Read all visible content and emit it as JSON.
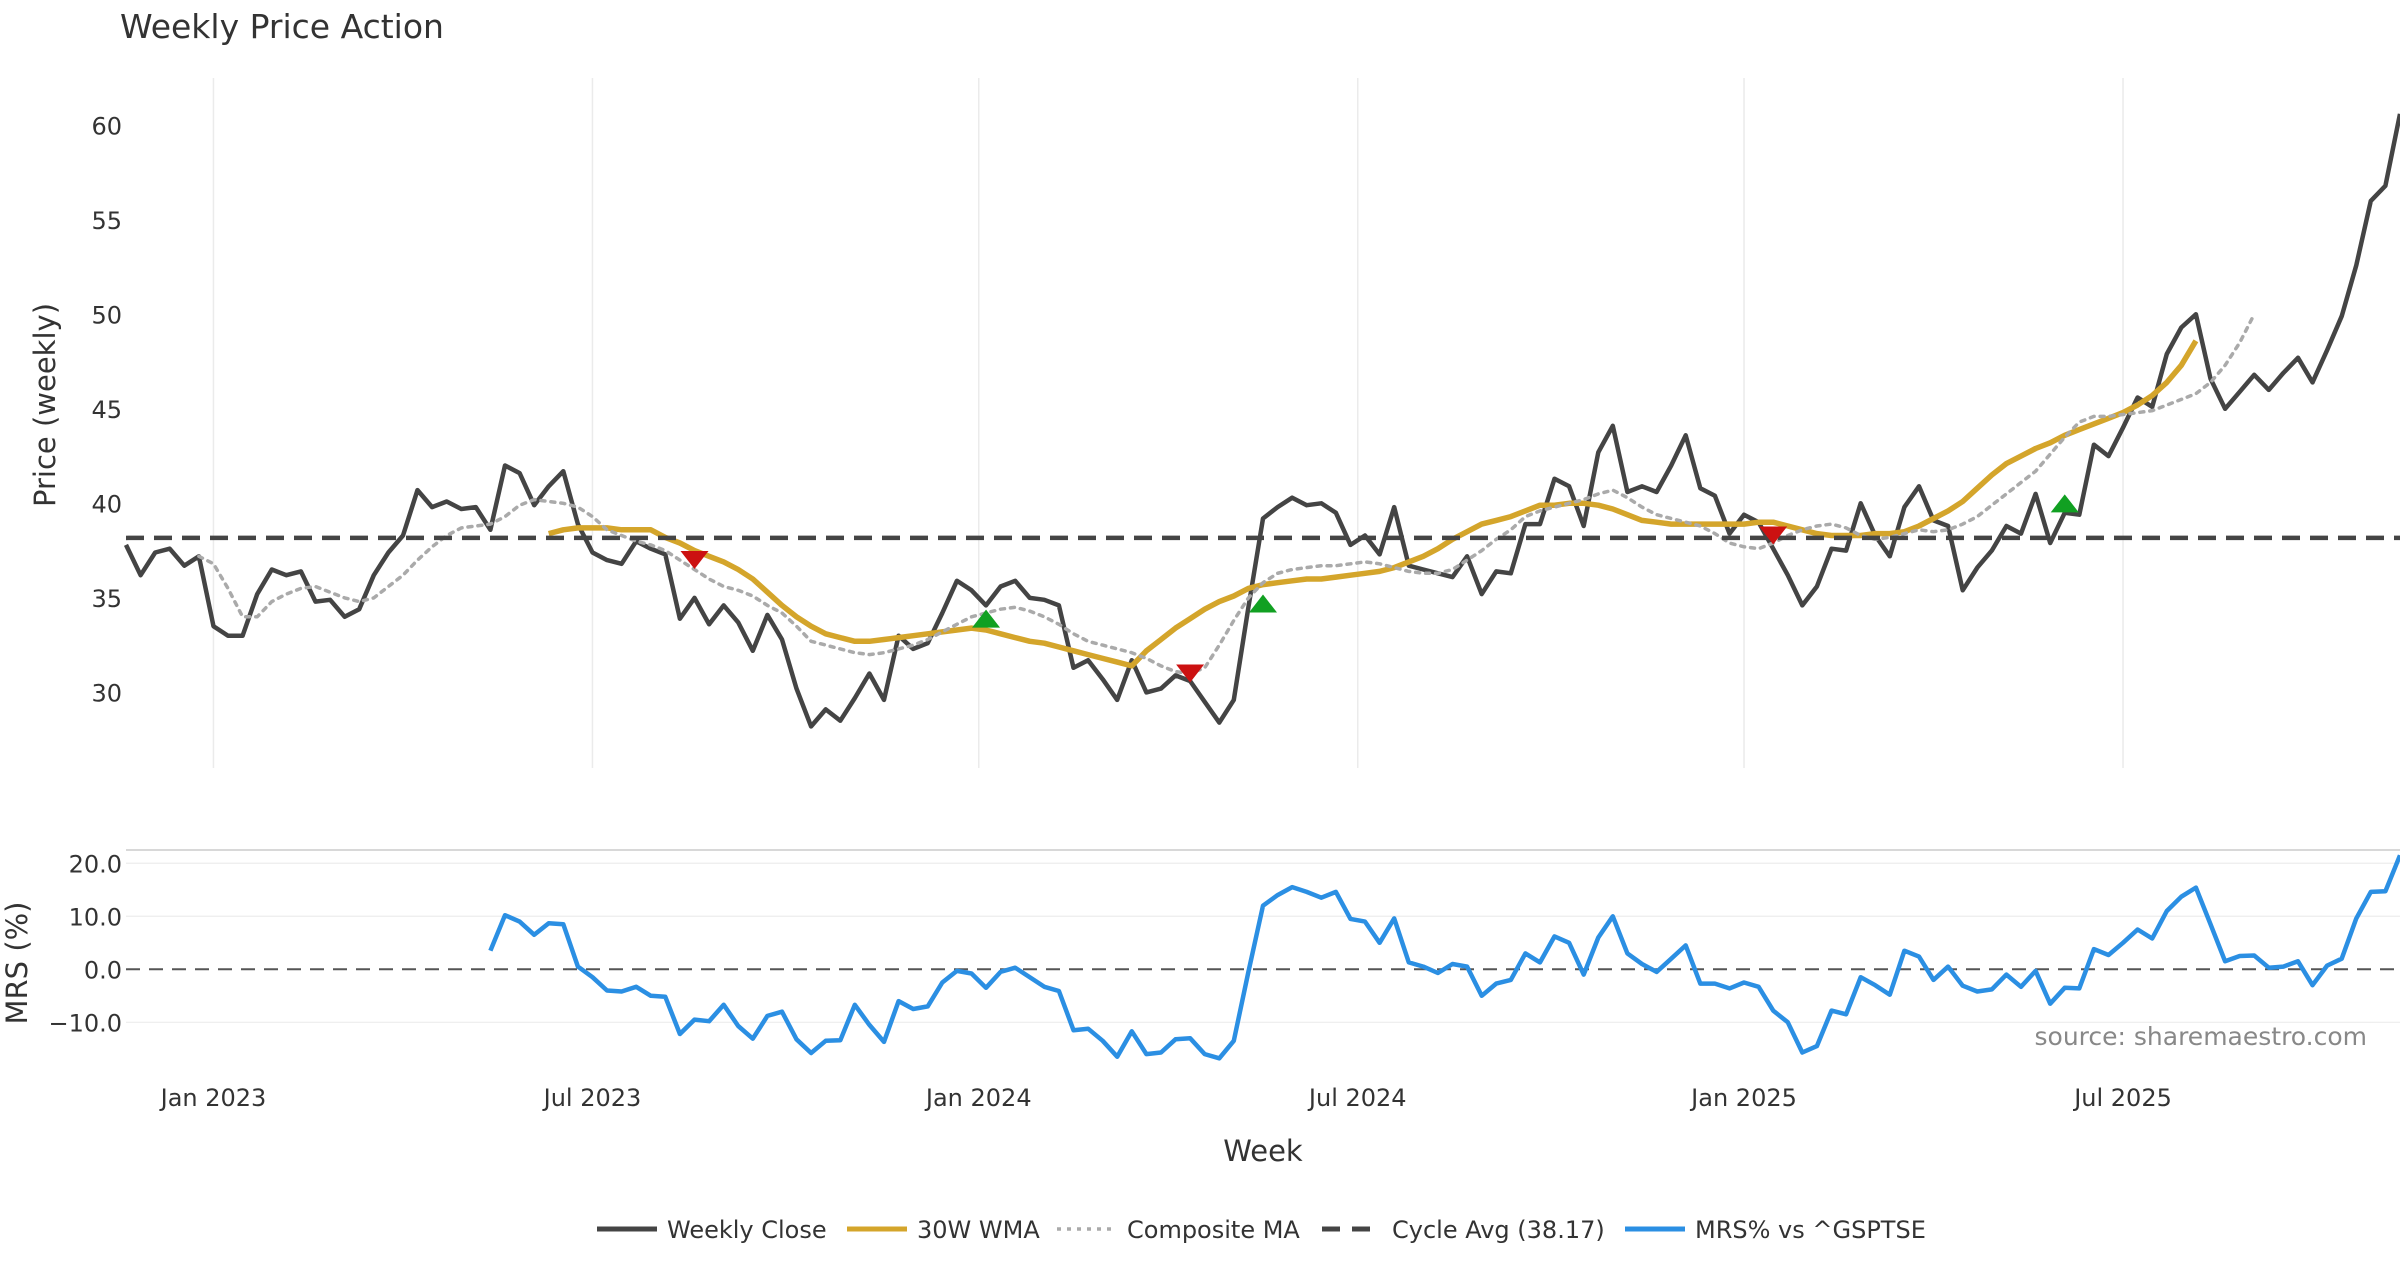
{
  "chart_data": [
    {
      "type": "line",
      "title": "Weekly Price Action",
      "ylabel": "Price (weekly)",
      "ylim": [
        26,
        62.5
      ],
      "yticks": [
        30,
        35,
        40,
        45,
        50,
        55,
        60
      ],
      "grid": "vertical",
      "x_start_week": "2022-11-21",
      "x_step_weeks": 1,
      "series": [
        {
          "name": "Weekly Close",
          "color": "#444444",
          "style": "solid",
          "values": [
            37.8,
            36.2,
            37.4,
            37.6,
            36.7,
            37.2,
            33.5,
            33.0,
            33.0,
            35.2,
            36.5,
            36.2,
            36.4,
            34.8,
            34.9,
            34.0,
            34.4,
            36.2,
            37.4,
            38.3,
            40.7,
            39.8,
            40.1,
            39.7,
            39.8,
            38.6,
            42.0,
            41.6,
            39.9,
            40.9,
            41.7,
            38.9,
            37.4,
            37.0,
            36.8,
            38.0,
            37.6,
            37.3,
            33.9,
            35.0,
            33.6,
            34.6,
            33.7,
            32.2,
            34.1,
            32.8,
            30.2,
            28.2,
            29.1,
            28.5,
            29.7,
            31.0,
            29.6,
            33.0,
            32.3,
            32.6,
            34.2,
            35.9,
            35.4,
            34.6,
            35.6,
            35.9,
            35.0,
            34.9,
            34.6,
            31.3,
            31.7,
            30.7,
            29.6,
            31.7,
            30.0,
            30.2,
            30.9,
            30.6,
            29.5,
            28.4,
            29.6,
            34.5,
            39.2,
            39.8,
            40.3,
            39.9,
            40.0,
            39.5,
            37.8,
            38.3,
            37.3,
            39.8,
            36.7,
            36.5,
            36.3,
            36.1,
            37.2,
            35.2,
            36.4,
            36.3,
            38.9,
            38.9,
            41.3,
            40.9,
            38.8,
            42.7,
            44.1,
            40.6,
            40.9,
            40.6,
            42.0,
            43.6,
            40.8,
            40.4,
            38.4,
            39.4,
            39.0,
            37.6,
            36.2,
            34.6,
            35.6,
            37.6,
            37.5,
            40.0,
            38.3,
            37.2,
            39.8,
            40.9,
            39.1,
            38.8,
            35.4,
            36.6,
            37.5,
            38.8,
            38.4,
            40.5,
            37.9,
            39.5,
            39.4,
            43.1,
            42.5,
            44.0,
            45.6,
            45.1,
            47.9,
            49.3,
            50.0,
            46.6,
            45.0,
            45.9,
            46.8,
            46.0,
            46.9,
            47.7,
            46.4,
            48.1,
            49.9,
            52.6,
            56.0,
            56.8,
            60.6
          ]
        },
        {
          "name": "30W WMA",
          "color": "#D4A52B",
          "style": "solid",
          "start_index": 29,
          "values": [
            38.4,
            38.6,
            38.7,
            38.7,
            38.7,
            38.6,
            38.6,
            38.6,
            38.2,
            37.9,
            37.5,
            37.2,
            36.9,
            36.5,
            36.0,
            35.3,
            34.6,
            34.0,
            33.5,
            33.1,
            32.9,
            32.7,
            32.7,
            32.8,
            32.9,
            33.0,
            33.1,
            33.2,
            33.3,
            33.4,
            33.3,
            33.1,
            32.9,
            32.7,
            32.6,
            32.4,
            32.2,
            32.0,
            31.8,
            31.6,
            31.4,
            32.2,
            32.8,
            33.4,
            33.9,
            34.4,
            34.8,
            35.1,
            35.5,
            35.7,
            35.8,
            35.9,
            36.0,
            36.0,
            36.1,
            36.2,
            36.3,
            36.4,
            36.6,
            36.9,
            37.2,
            37.6,
            38.1,
            38.5,
            38.9,
            39.1,
            39.3,
            39.6,
            39.9,
            39.9,
            40.0,
            40.0,
            39.9,
            39.7,
            39.4,
            39.1,
            39.0,
            38.9,
            38.9,
            38.9,
            38.9,
            38.9,
            38.9,
            39.0,
            39.0,
            38.8,
            38.6,
            38.4,
            38.3,
            38.3,
            38.3,
            38.4,
            38.4,
            38.5,
            38.8,
            39.2,
            39.6,
            40.1,
            40.8,
            41.5,
            42.1,
            42.5,
            42.9,
            43.2,
            43.6,
            43.9,
            44.2,
            44.5,
            44.8,
            45.2,
            45.7,
            46.4,
            47.3,
            48.6
          ]
        },
        {
          "name": "Composite MA",
          "color": "#AAAAAA",
          "style": "dotted",
          "start_index": 5,
          "values": [
            37.2,
            36.8,
            35.5,
            34.0,
            34.0,
            34.8,
            35.2,
            35.5,
            35.6,
            35.3,
            35.0,
            34.8,
            35.0,
            35.6,
            36.2,
            37.0,
            37.7,
            38.3,
            38.7,
            38.8,
            38.9,
            39.3,
            39.9,
            40.2,
            40.1,
            40.0,
            39.8,
            39.3,
            38.6,
            38.3,
            38.0,
            37.8,
            37.5,
            37.0,
            36.5,
            36.0,
            35.6,
            35.4,
            35.1,
            34.6,
            34.2,
            33.5,
            32.7,
            32.5,
            32.3,
            32.1,
            32.0,
            32.1,
            32.3,
            32.5,
            32.8,
            33.2,
            33.6,
            34.0,
            34.2,
            34.4,
            34.5,
            34.3,
            34.0,
            33.6,
            33.1,
            32.7,
            32.5,
            32.3,
            32.1,
            31.8,
            31.4,
            31.1,
            31.0,
            31.3,
            32.5,
            33.8,
            35.0,
            35.8,
            36.3,
            36.5,
            36.6,
            36.7,
            36.7,
            36.8,
            36.9,
            36.8,
            36.6,
            36.4,
            36.3,
            36.3,
            36.5,
            37.0,
            37.5,
            38.1,
            38.6,
            39.3,
            39.6,
            39.8,
            40.0,
            40.2,
            40.5,
            40.7,
            40.3,
            39.8,
            39.4,
            39.2,
            39.0,
            38.8,
            38.4,
            37.9,
            37.7,
            37.6,
            37.9,
            38.3,
            38.6,
            38.8,
            38.9,
            38.7,
            38.3,
            38.1,
            38.2,
            38.4,
            38.6,
            38.5,
            38.6,
            38.9,
            39.3,
            39.9,
            40.5,
            41.1,
            41.7,
            42.6,
            43.5,
            44.3,
            44.6,
            44.6,
            44.7,
            44.8,
            44.9,
            45.2,
            45.5,
            45.8,
            46.4,
            47.3,
            48.5,
            50.0
          ]
        },
        {
          "name": "Cycle Avg (38.17)",
          "color": "#444444",
          "style": "dashed",
          "constant": 38.17
        }
      ],
      "markers": [
        {
          "label": "down",
          "index": 39,
          "y": 37.0,
          "color": "#CC1111"
        },
        {
          "label": "up",
          "index": 59,
          "y": 33.9,
          "color": "#11A022"
        },
        {
          "label": "down",
          "index": 73,
          "y": 31.0,
          "color": "#CC1111"
        },
        {
          "label": "up",
          "index": 78,
          "y": 34.7,
          "color": "#11A022"
        },
        {
          "label": "down",
          "index": 113,
          "y": 38.3,
          "color": "#CC1111"
        },
        {
          "label": "up",
          "index": 133,
          "y": 40.0,
          "color": "#11A022"
        }
      ]
    },
    {
      "type": "line",
      "ylabel": "MRS (%)",
      "xlabel": "Week",
      "ylim": [
        -19,
        22.5
      ],
      "yticks": [
        20.0,
        10.0,
        0.0,
        -10.0
      ],
      "ytick_labels": [
        "20.0",
        "10.0",
        "0.0",
        "−10.0"
      ],
      "xticks": [
        {
          "label": "Jan 2023",
          "index": 6
        },
        {
          "label": "Jul 2023",
          "index": 32
        },
        {
          "label": "Jan 2024",
          "index": 58.5
        },
        {
          "label": "Jul 2024",
          "index": 84.5
        },
        {
          "label": "Jan 2025",
          "index": 111
        },
        {
          "label": "Jul 2025",
          "index": 137
        }
      ],
      "zero_line": "dashed",
      "series": [
        {
          "name": "MRS% vs ^GSPTSE",
          "color": "#2B8FE3",
          "style": "solid",
          "start_index": 25,
          "values": [
            3.5,
            10.2,
            9.0,
            6.5,
            8.7,
            8.5,
            0.5,
            -1.5,
            -4.0,
            -4.2,
            -3.3,
            -5.0,
            -5.2,
            -12.2,
            -9.5,
            -9.8,
            -6.7,
            -10.7,
            -13.1,
            -8.8,
            -8.0,
            -13.2,
            -15.8,
            -13.5,
            -13.4,
            -6.7,
            -10.5,
            -13.7,
            -6.0,
            -7.5,
            -7.0,
            -2.5,
            -0.3,
            -0.8,
            -3.5,
            -0.5,
            0.3,
            -1.5,
            -3.3,
            -4.1,
            -11.5,
            -11.2,
            -13.5,
            -16.5,
            -11.7,
            -16.0,
            -15.7,
            -13.2,
            -13.0,
            -16.0,
            -16.8,
            -13.5,
            -0.5,
            12.0,
            14.0,
            15.5,
            14.6,
            13.5,
            14.6,
            9.5,
            9.0,
            5.0,
            9.6,
            1.3,
            0.5,
            -0.7,
            1.0,
            0.5,
            -5.0,
            -2.7,
            -2.0,
            3.0,
            1.3,
            6.2,
            5.0,
            -1.0,
            6.0,
            10.0,
            3.0,
            1.0,
            -0.5,
            2.0,
            4.5,
            -2.7,
            -2.7,
            -3.6,
            -2.5,
            -3.3,
            -7.8,
            -10.0,
            -15.7,
            -14.5,
            -7.8,
            -8.5,
            -1.5,
            -3.0,
            -4.8,
            3.5,
            2.4,
            -2.0,
            0.5,
            -3.1,
            -4.2,
            -3.8,
            -1.0,
            -3.3,
            -0.3,
            -6.5,
            -3.5,
            -3.6,
            3.8,
            2.7,
            5.0,
            7.5,
            5.8,
            11.0,
            13.7,
            15.4,
            8.5,
            1.5,
            2.5,
            2.6,
            0.3,
            0.5,
            1.5,
            -3.0,
            0.7,
            2.0,
            9.6,
            14.6,
            14.7,
            21.5
          ]
        }
      ]
    }
  ],
  "legend": [
    {
      "label": "Weekly Close",
      "color": "#444444",
      "style": "solid"
    },
    {
      "label": "30W WMA",
      "color": "#D4A52B",
      "style": "solid"
    },
    {
      "label": "Composite MA",
      "color": "#AAAAAA",
      "style": "dotted"
    },
    {
      "label": "Cycle Avg (38.17)",
      "color": "#444444",
      "style": "dashed"
    },
    {
      "label": "MRS% vs ^GSPTSE",
      "color": "#2B8FE3",
      "style": "solid"
    }
  ],
  "legend_position": "bottom-center",
  "source_note": "source: sharemaestro.com"
}
